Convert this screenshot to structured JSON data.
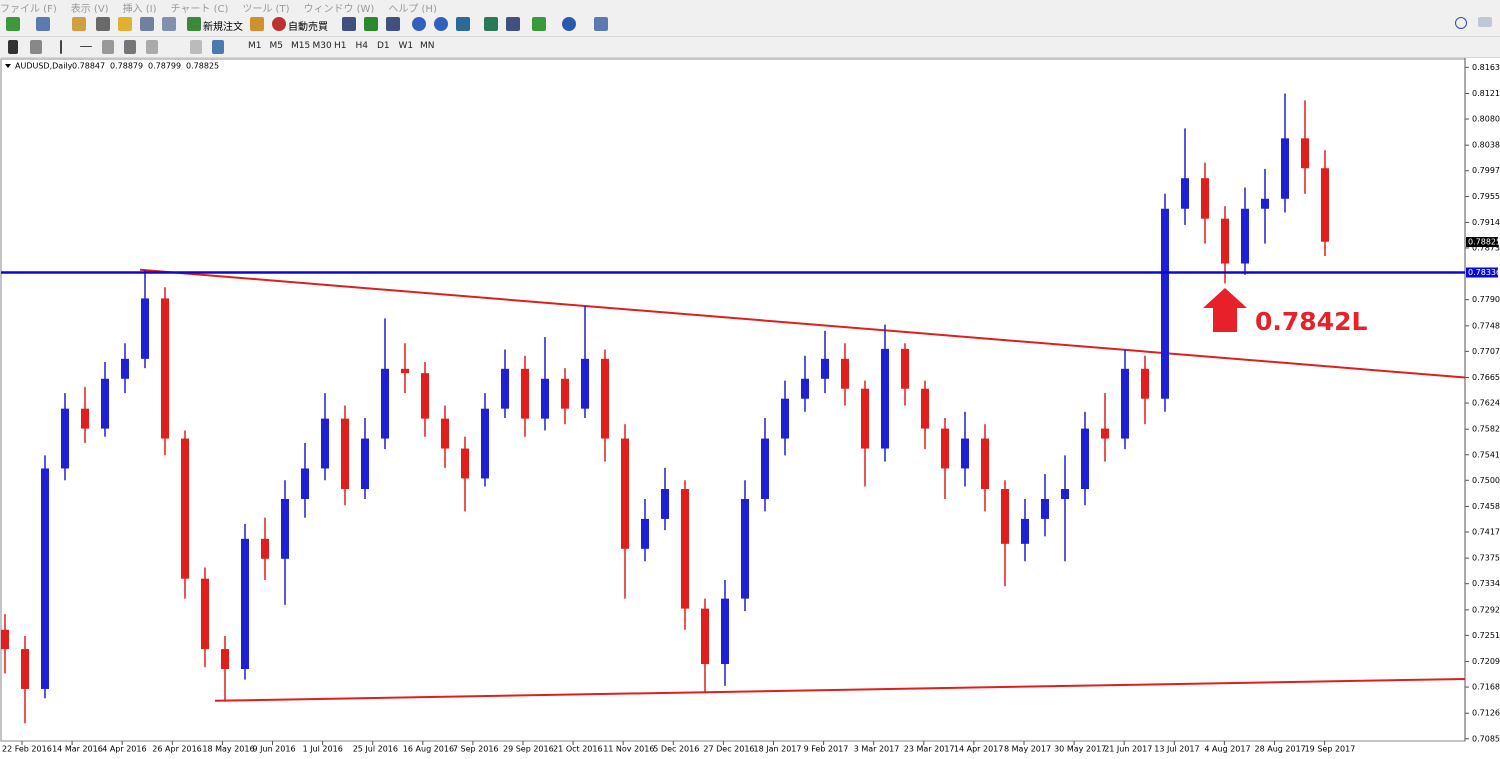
{
  "menu": [
    "ファイル (F)",
    "表示 (V)",
    "挿入 (I)",
    "チャート (C)",
    "ツール (T)",
    "ウィンドウ (W)",
    "ヘルプ (H)"
  ],
  "toolbar": {
    "new_order": "新規注文",
    "auto_trading": "自動売買"
  },
  "timeframes": [
    "M1",
    "M5",
    "M15",
    "M30",
    "H1",
    "H4",
    "D1",
    "W1",
    "MN"
  ],
  "chart_data": {
    "type": "candlestick",
    "symbol": "AUDUSD,Daily",
    "quote": [
      "0.78847",
      "0.78879",
      "0.78799",
      "0.78825"
    ],
    "up_color": "#1f1fd6",
    "down_color": "#e01e1e",
    "open": [
      0.726,
      0.7229,
      0.7165,
      0.7519,
      0.7615,
      0.7583,
      0.7663,
      0.7695,
      0.7792,
      0.7567,
      0.7342,
      0.7229,
      0.7197,
      0.7406,
      0.7374,
      0.747,
      0.7519,
      0.7599,
      0.7486,
      0.7567,
      0.7679,
      0.7672,
      0.7599,
      0.7551,
      0.7503,
      0.7615,
      0.7679,
      0.7599,
      0.7663,
      0.7615,
      0.7695,
      0.7567,
      0.739,
      0.7438,
      0.7486,
      0.7294,
      0.7205,
      0.731,
      0.747,
      0.7567,
      0.7631,
      0.7663,
      0.7695,
      0.7647,
      0.7551,
      0.7711,
      0.7647,
      0.7583,
      0.7519,
      0.7567,
      0.7486,
      0.7398,
      0.7438,
      0.747,
      0.7486,
      0.7583,
      0.7567,
      0.7679,
      0.7631,
      0.7936,
      0.7985,
      0.792,
      0.7848,
      0.7936,
      0.7952,
      0.8049,
      0.8001
    ],
    "high": [
      0.7285,
      0.725,
      0.754,
      0.764,
      0.765,
      0.769,
      0.772,
      0.7838,
      0.781,
      0.758,
      0.736,
      0.725,
      0.743,
      0.744,
      0.75,
      0.756,
      0.764,
      0.762,
      0.76,
      0.776,
      0.772,
      0.769,
      0.762,
      0.757,
      0.764,
      0.771,
      0.77,
      0.773,
      0.768,
      0.778,
      0.771,
      0.759,
      0.747,
      0.752,
      0.75,
      0.731,
      0.734,
      0.75,
      0.76,
      0.766,
      0.77,
      0.774,
      0.772,
      0.766,
      0.775,
      0.772,
      0.766,
      0.76,
      0.761,
      0.759,
      0.75,
      0.747,
      0.751,
      0.754,
      0.761,
      0.764,
      0.771,
      0.77,
      0.796,
      0.8065,
      0.801,
      0.794,
      0.797,
      0.8,
      0.8121,
      0.811,
      0.803
    ],
    "low": [
      0.719,
      0.711,
      0.715,
      0.75,
      0.756,
      0.757,
      0.764,
      0.768,
      0.754,
      0.731,
      0.72,
      0.7146,
      0.718,
      0.734,
      0.73,
      0.744,
      0.75,
      0.746,
      0.747,
      0.755,
      0.764,
      0.757,
      0.752,
      0.745,
      0.749,
      0.76,
      0.757,
      0.758,
      0.759,
      0.76,
      0.753,
      0.731,
      0.737,
      0.742,
      0.726,
      0.716,
      0.717,
      0.729,
      0.745,
      0.754,
      0.761,
      0.764,
      0.762,
      0.749,
      0.753,
      0.762,
      0.755,
      0.747,
      0.749,
      0.745,
      0.733,
      0.737,
      0.741,
      0.737,
      0.746,
      0.753,
      0.755,
      0.759,
      0.761,
      0.791,
      0.788,
      0.7816,
      0.783,
      0.788,
      0.793,
      0.796,
      0.786
    ],
    "close": [
      0.7229,
      0.7165,
      0.7519,
      0.7615,
      0.7583,
      0.7663,
      0.7695,
      0.7792,
      0.7567,
      0.7342,
      0.7229,
      0.7197,
      0.7406,
      0.7374,
      0.747,
      0.7519,
      0.7599,
      0.7486,
      0.7567,
      0.7679,
      0.7672,
      0.7599,
      0.7551,
      0.7503,
      0.7615,
      0.7679,
      0.7599,
      0.7663,
      0.7615,
      0.7695,
      0.7567,
      0.739,
      0.7438,
      0.7486,
      0.7294,
      0.7205,
      0.731,
      0.747,
      0.7567,
      0.7631,
      0.7663,
      0.7695,
      0.7647,
      0.7551,
      0.7711,
      0.7647,
      0.7583,
      0.7519,
      0.7567,
      0.7486,
      0.7398,
      0.7438,
      0.747,
      0.7486,
      0.7583,
      0.7567,
      0.7679,
      0.7631,
      0.7936,
      0.7985,
      0.792,
      0.7848,
      0.7936,
      0.7952,
      0.8049,
      0.8001,
      0.7883
    ],
    "ylim": [
      0.7075,
      0.8178
    ],
    "yticks": [
      {
        "value": 0.8163,
        "label": "0.81630"
      },
      {
        "value": 0.8121,
        "label": "0.81210"
      },
      {
        "value": 0.808,
        "label": "0.80800"
      },
      {
        "value": 0.8038,
        "label": "0.80380"
      },
      {
        "value": 0.7997,
        "label": "0.79970"
      },
      {
        "value": 0.79555,
        "label": "0.79555"
      },
      {
        "value": 0.7914,
        "label": "0.79140"
      },
      {
        "value": 0.7873,
        "label": "0.78730"
      },
      {
        "value": 0.779,
        "label": "0.77900"
      },
      {
        "value": 0.7748,
        "label": "0.77480"
      },
      {
        "value": 0.7707,
        "label": "0.77070"
      },
      {
        "value": 0.7665,
        "label": "0.76650"
      },
      {
        "value": 0.7624,
        "label": "0.76240"
      },
      {
        "value": 0.7582,
        "label": "0.75820"
      },
      {
        "value": 0.7541,
        "label": "0.75410"
      },
      {
        "value": 0.75,
        "label": "0.75000"
      },
      {
        "value": 0.7458,
        "label": "0.74580"
      },
      {
        "value": 0.7417,
        "label": "0.74170"
      },
      {
        "value": 0.7375,
        "label": "0.73750"
      },
      {
        "value": 0.7334,
        "label": "0.73340"
      },
      {
        "value": 0.7292,
        "label": "0.72920"
      },
      {
        "value": 0.7251,
        "label": "0.72510"
      },
      {
        "value": 0.7209,
        "label": "0.72090"
      },
      {
        "value": 0.7168,
        "label": "0.71680"
      },
      {
        "value": 0.7126,
        "label": "0.71260"
      },
      {
        "value": 0.7085,
        "label": "0.70850"
      }
    ],
    "date_labels": [
      "22 Feb 2016",
      "14 Mar 2016",
      "4 Apr 2016",
      "26 Apr 2016",
      "18 May 2016",
      "9 Jun 2016",
      "1 Jul 2016",
      "25 Jul 2016",
      "16 Aug 2016",
      "7 Sep 2016",
      "29 Sep 2016",
      "21 Oct 2016",
      "11 Nov 2016",
      "5 Dec 2016",
      "27 Dec 2016",
      "18 Jan 2017",
      "9 Feb 2017",
      "3 Mar 2017",
      "23 Mar 2017",
      "14 Apr 2017",
      "8 May 2017",
      "30 May 2017",
      "21 Jun 2017",
      "13 Jul 2017",
      "4 Aug 2017",
      "28 Aug 2017",
      "19 Sep 2017"
    ],
    "hlines": [
      {
        "value": 0.78336,
        "label": "0.78336",
        "color": "#0a0ad0"
      }
    ],
    "last_price": {
      "value": 0.78825,
      "label": "0.78825"
    },
    "trendlines": [
      {
        "color": "#e01e1e",
        "points": [
          [
            6.75,
            0.7838
          ],
          [
            73,
            0.7665
          ]
        ]
      },
      {
        "color": "#e01e1e",
        "points": [
          [
            10.5,
            0.7146
          ],
          [
            73,
            0.7181
          ]
        ]
      }
    ],
    "annotation": {
      "text": "0.7842L",
      "color": "#e8202a"
    }
  }
}
